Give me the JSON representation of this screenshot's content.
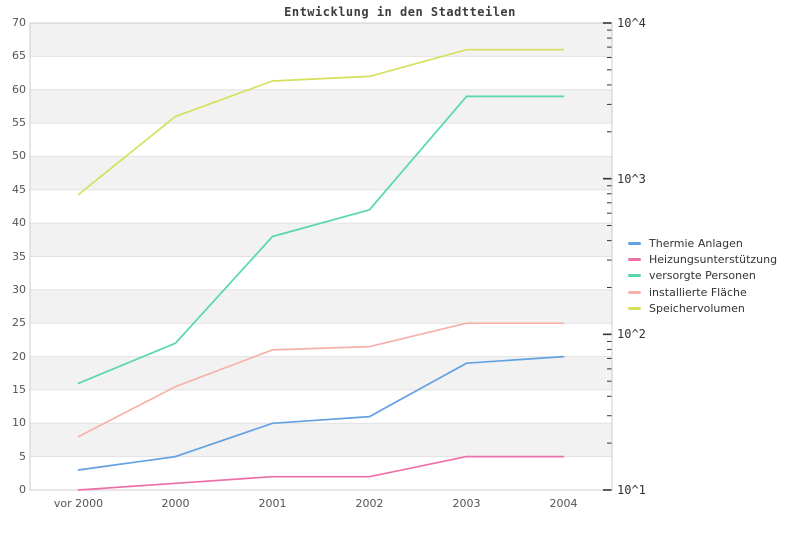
{
  "chart_data": {
    "type": "line",
    "title": "Entwicklung in den Stadtteilen",
    "categories": [
      "vor 2000",
      "2000",
      "2001",
      "2002",
      "2003",
      "2004"
    ],
    "series": [
      {
        "name": "Thermie Anlagen",
        "color": "#63a2e0",
        "values": [
          3,
          5,
          10,
          11,
          19,
          20
        ]
      },
      {
        "name": "Heizungsunterstützung",
        "color": "#ee6fa8",
        "values": [
          0,
          1,
          2,
          2,
          5,
          5
        ]
      },
      {
        "name": "versorgte Personen",
        "color": "#57d7aa",
        "values": [
          16,
          22,
          38,
          42,
          59,
          59
        ]
      },
      {
        "name": "installierte Fläche",
        "color": "#f5b2ab",
        "values": [
          8,
          15.5,
          21,
          21.5,
          25,
          25
        ]
      },
      {
        "name": "Speichervolumen",
        "color": "#d5e05c",
        "values": [
          44.3,
          56,
          61.3,
          62,
          66,
          66
        ]
      }
    ],
    "left_axis": {
      "min": 0,
      "max": 70,
      "tick_step": 5,
      "ticks": [
        "0",
        "5",
        "10",
        "15",
        "20",
        "25",
        "30",
        "35",
        "40",
        "45",
        "50",
        "55",
        "60",
        "65",
        "70"
      ]
    },
    "right_axis": {
      "scale": "log",
      "labels_top_to_bottom": [
        "10^4",
        "10^3",
        "10^2",
        "10^1"
      ]
    },
    "grid": "horizontal bands, alternating",
    "legend_position": "right",
    "colors": {
      "band_gray": "#f2f2f2",
      "gridline": "#e2e2e2",
      "plot_border": "#cccccc",
      "axis_tick": "#333333",
      "tick_label": "#555555",
      "title_text": "#3c3c3c"
    }
  }
}
